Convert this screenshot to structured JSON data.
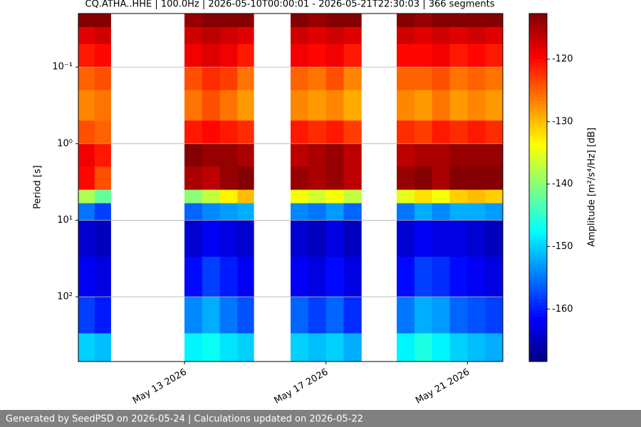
{
  "chart_data": {
    "type": "spectrogram",
    "title": "CQ.ATHA..HHE | 100.0Hz | 2026-05-10T00:00:01 - 2026-05-21T22:30:03 | 366 segments",
    "y_label": "Period [s]",
    "colorbar_label": "Amplitude [m²/s⁴/Hz] [dB]",
    "xlim": [
      "2026-05-10T00:00:00Z",
      "2026-05-22T00:00:00Z"
    ],
    "xticks": [
      {
        "value": "2026-05-13T00:00:00Z",
        "label": "May 13 2026"
      },
      {
        "value": "2026-05-17T00:00:00Z",
        "label": "May 17 2026"
      },
      {
        "value": "2026-05-21T00:00:00Z",
        "label": "May 21 2026"
      }
    ],
    "ylim": [
      0.02,
      700
    ],
    "y_log": true,
    "y_inverted": true,
    "yticks": [
      {
        "value": 0.1,
        "label": "10⁻¹"
      },
      {
        "value": 1,
        "label": "10⁰"
      },
      {
        "value": 10,
        "label": "10¹"
      },
      {
        "value": 100,
        "label": "10²"
      }
    ],
    "grid": true,
    "colormap": "jet",
    "clim": [
      -168.4,
      -112.7
    ],
    "cticks": [
      -160,
      -150,
      -140,
      -130,
      -120
    ],
    "period_edges": [
      0.02,
      0.03,
      0.05,
      0.1,
      0.2,
      0.5,
      1,
      2,
      4,
      6,
      10,
      30,
      100,
      300,
      700
    ],
    "columns": [
      {
        "start": "2026-05-10T00:00:00Z",
        "end": "2026-05-10T11:00:00Z",
        "values": [
          -113,
          -118,
          -121,
          -125,
          -127,
          -124,
          -119,
          -120,
          -138,
          -155,
          -164,
          -162,
          -158,
          -150
        ]
      },
      {
        "start": "2026-05-10T11:00:00Z",
        "end": "2026-05-10T22:00:00Z",
        "values": [
          -113,
          -117,
          -120,
          -124,
          -126,
          -125,
          -121,
          -124,
          -142,
          -158,
          -165,
          -163,
          -160,
          -151
        ]
      },
      {
        "start": "2026-05-13T00:00:00Z",
        "end": "2026-05-13T12:00:00Z",
        "values": [
          -114,
          -117,
          -119,
          -124,
          -126,
          -121,
          -113,
          -115,
          -140,
          -156,
          -164,
          -161,
          -154,
          -148
        ]
      },
      {
        "start": "2026-05-13T12:00:00Z",
        "end": "2026-05-14T00:00:00Z",
        "values": [
          -113,
          -116,
          -118,
          -122,
          -124,
          -120,
          -114,
          -116,
          -137,
          -154,
          -162,
          -158,
          -152,
          -147
        ]
      },
      {
        "start": "2026-05-14T00:00:00Z",
        "end": "2026-05-14T12:00:00Z",
        "values": [
          -113,
          -117,
          -119,
          -123,
          -126,
          -121,
          -114,
          -114,
          -133,
          -153,
          -163,
          -160,
          -155,
          -149
        ]
      },
      {
        "start": "2026-05-14T12:00:00Z",
        "end": "2026-05-14T23:00:00Z",
        "values": [
          -113,
          -118,
          -121,
          -126,
          -128,
          -122,
          -115,
          -113,
          -130,
          -152,
          -164,
          -162,
          -157,
          -150
        ]
      },
      {
        "start": "2026-05-16T00:00:00Z",
        "end": "2026-05-16T12:00:00Z",
        "values": [
          -113,
          -117,
          -119,
          -125,
          -127,
          -121,
          -116,
          -114,
          -134,
          -154,
          -164,
          -162,
          -156,
          -150
        ]
      },
      {
        "start": "2026-05-16T12:00:00Z",
        "end": "2026-05-17T00:00:00Z",
        "values": [
          -114,
          -118,
          -120,
          -126,
          -128,
          -122,
          -115,
          -115,
          -136,
          -155,
          -165,
          -163,
          -158,
          -151
        ]
      },
      {
        "start": "2026-05-17T00:00:00Z",
        "end": "2026-05-17T12:00:00Z",
        "values": [
          -113,
          -117,
          -119,
          -124,
          -127,
          -121,
          -114,
          -114,
          -134,
          -153,
          -163,
          -161,
          -156,
          -150
        ]
      },
      {
        "start": "2026-05-17T12:00:00Z",
        "end": "2026-05-18T00:00:00Z",
        "values": [
          -113,
          -118,
          -121,
          -127,
          -129,
          -123,
          -116,
          -116,
          -137,
          -156,
          -165,
          -163,
          -159,
          -152
        ]
      },
      {
        "start": "2026-05-19T00:00:00Z",
        "end": "2026-05-19T12:00:00Z",
        "values": [
          -113,
          -117,
          -120,
          -125,
          -127,
          -122,
          -116,
          -114,
          -135,
          -155,
          -164,
          -161,
          -155,
          -148
        ]
      },
      {
        "start": "2026-05-19T12:00:00Z",
        "end": "2026-05-20T00:00:00Z",
        "values": [
          -114,
          -118,
          -120,
          -125,
          -128,
          -123,
          -115,
          -113,
          -132,
          -152,
          -162,
          -158,
          -152,
          -146
        ]
      },
      {
        "start": "2026-05-20T00:00:00Z",
        "end": "2026-05-20T12:00:00Z",
        "values": [
          -113,
          -117,
          -119,
          -124,
          -126,
          -121,
          -115,
          -115,
          -134,
          -154,
          -163,
          -159,
          -153,
          -148
        ]
      },
      {
        "start": "2026-05-20T12:00:00Z",
        "end": "2026-05-21T00:00:00Z",
        "values": [
          -113,
          -118,
          -121,
          -126,
          -128,
          -122,
          -114,
          -113,
          -131,
          -152,
          -163,
          -161,
          -156,
          -150
        ]
      },
      {
        "start": "2026-05-21T00:00:00Z",
        "end": "2026-05-21T12:00:00Z",
        "values": [
          -113,
          -117,
          -120,
          -125,
          -127,
          -121,
          -114,
          -113,
          -130,
          -152,
          -164,
          -162,
          -157,
          -151
        ]
      },
      {
        "start": "2026-05-21T12:00:00Z",
        "end": "2026-05-22T00:00:00Z",
        "values": [
          -113,
          -118,
          -121,
          -126,
          -128,
          -122,
          -114,
          -113,
          -131,
          -153,
          -165,
          -163,
          -158,
          -152
        ]
      }
    ]
  },
  "footer": {
    "text": "Generated by SeedPSD on 2026-05-24 | Calculations updated on 2026-05-22"
  }
}
